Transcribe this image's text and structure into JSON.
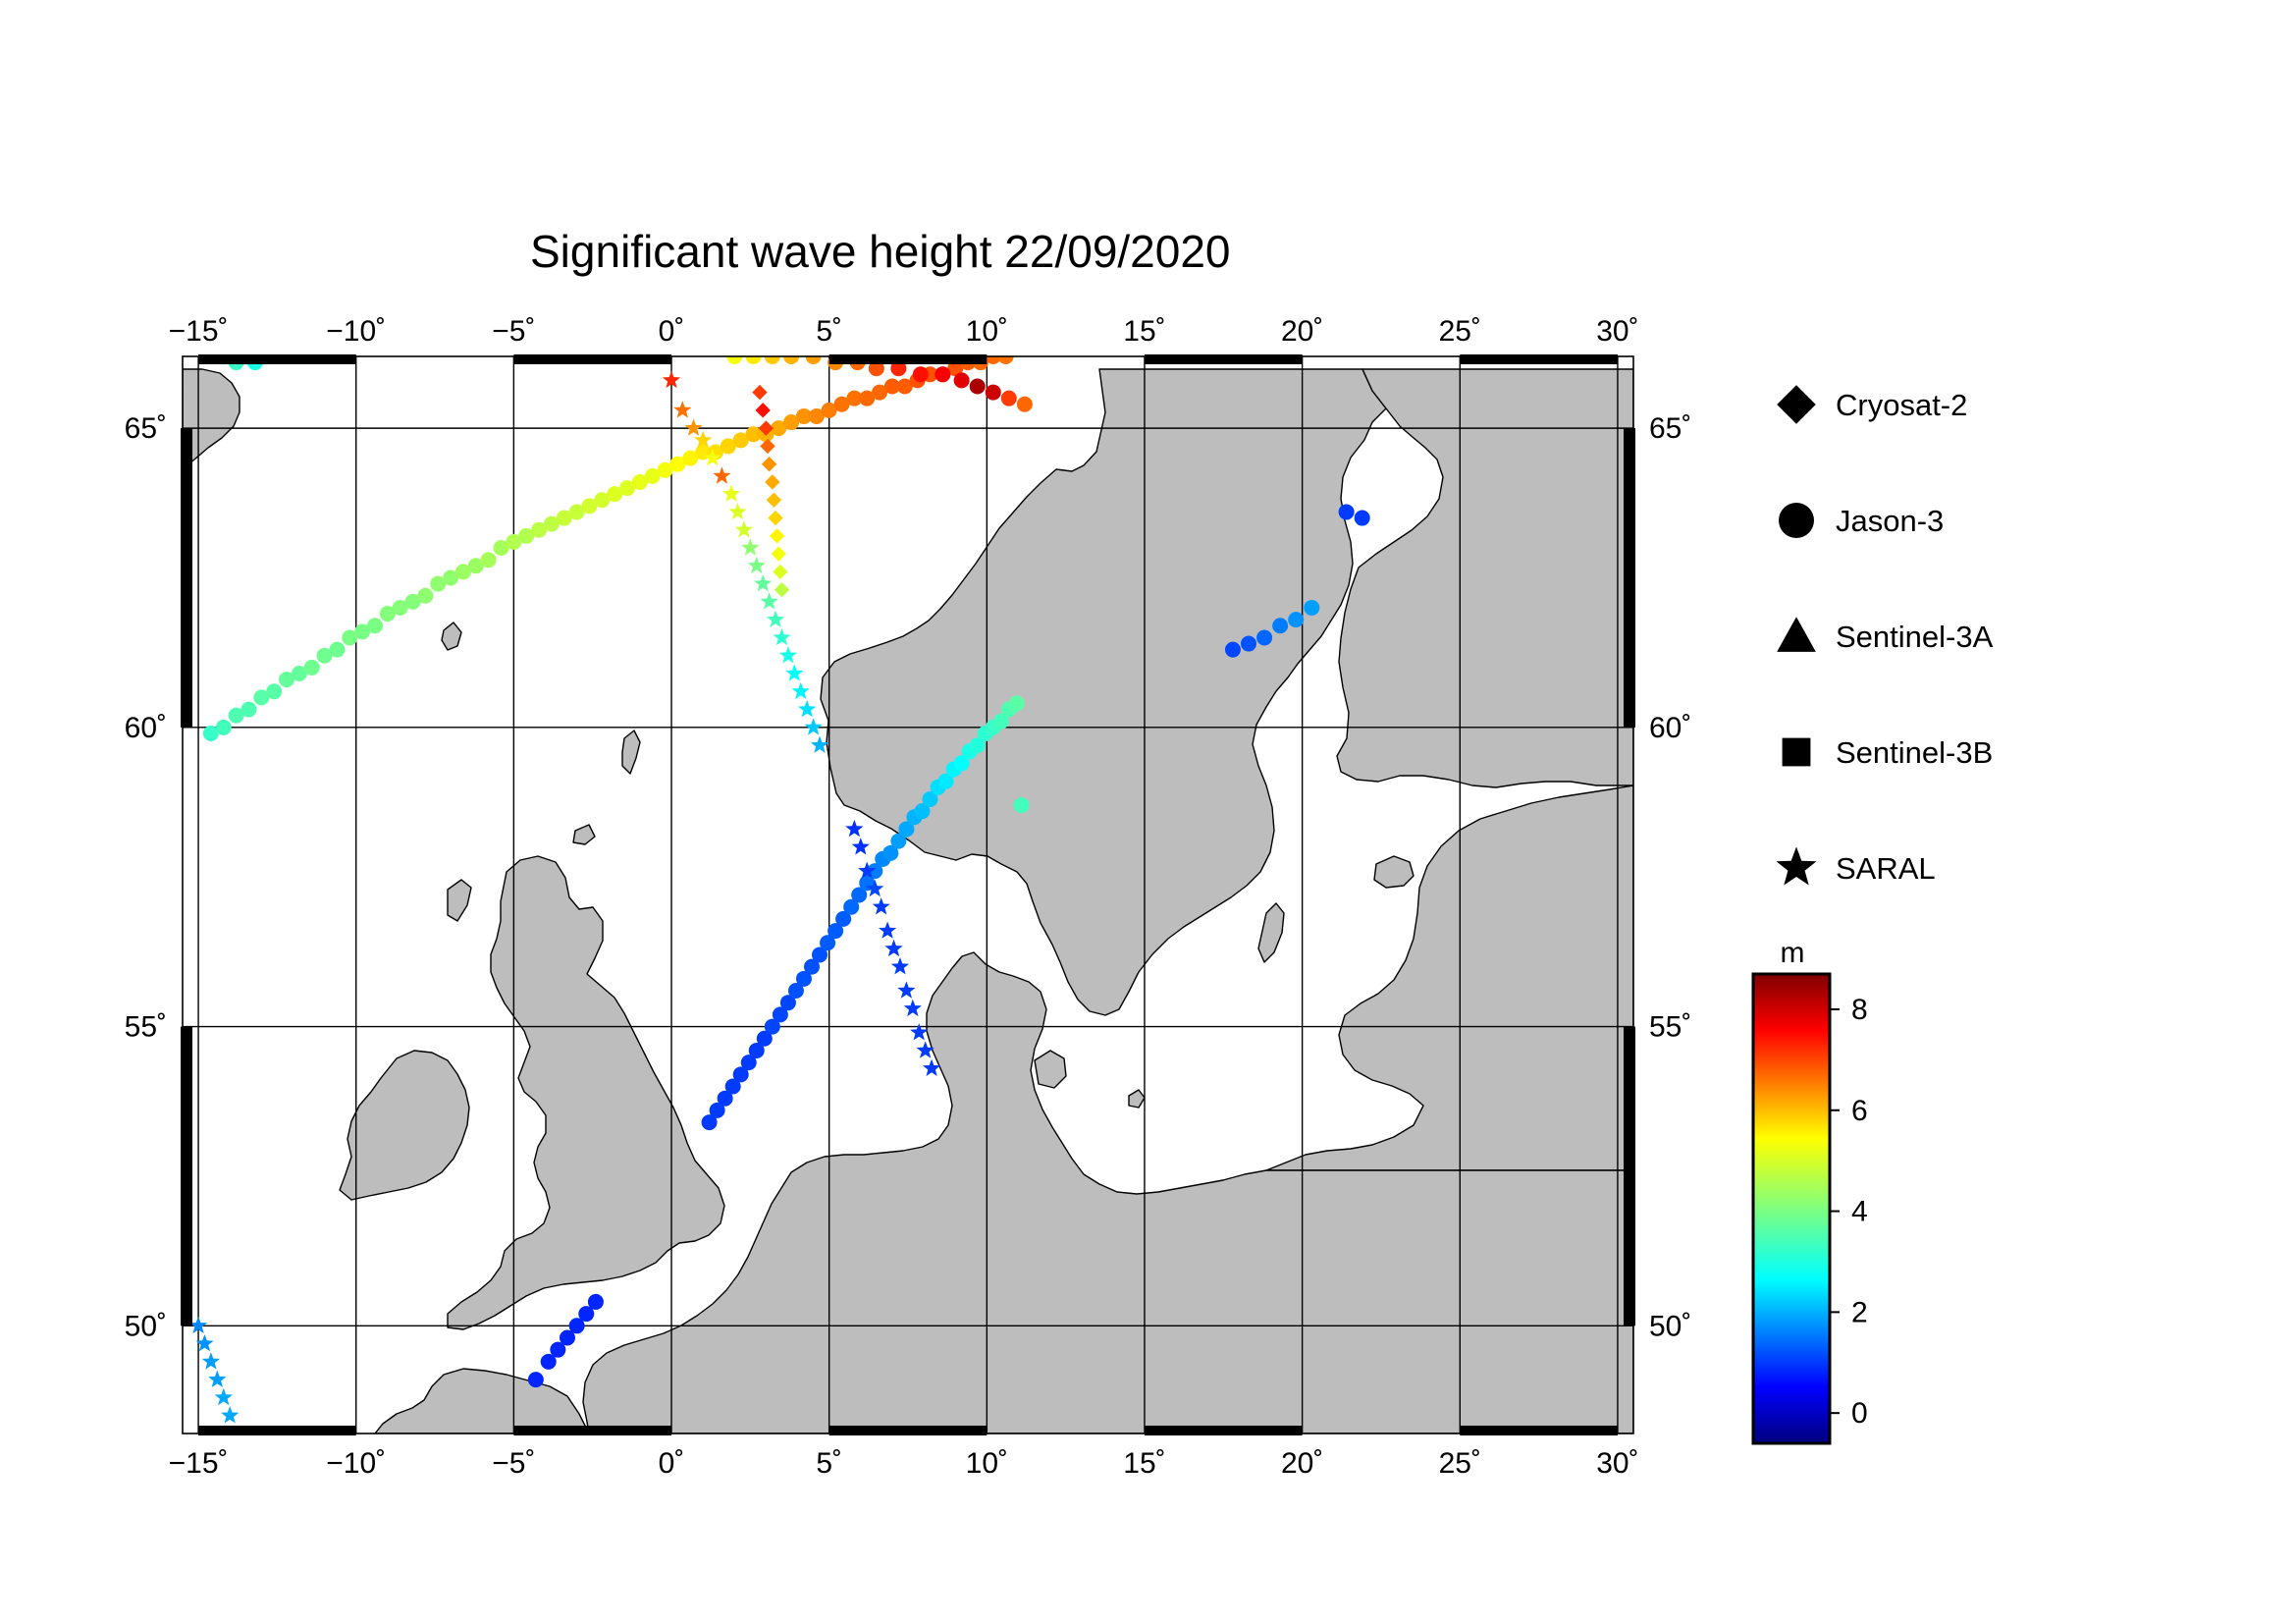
{
  "title": "Significant wave height 22/09/2020",
  "map": {
    "lon_range": [
      -15.5,
      30.5
    ],
    "lat_range": [
      48.2,
      66.2
    ],
    "lon_ticks": [
      -15,
      -10,
      -5,
      0,
      5,
      10,
      15,
      20,
      25,
      30
    ],
    "lon_tick_labels": [
      "−15˚",
      "−10˚",
      "−5˚",
      "0˚",
      "5˚",
      "10˚",
      "15˚",
      "20˚",
      "25˚",
      "30˚"
    ],
    "lat_ticks": [
      50,
      55,
      60,
      65
    ],
    "lat_tick_labels": [
      "50˚",
      "55˚",
      "60˚",
      "65˚"
    ],
    "land_color": "#bdbdbd",
    "sea_color": "#ffffff"
  },
  "legend": [
    {
      "name": "Cryosat-2",
      "marker": "diamond"
    },
    {
      "name": "Jason-3",
      "marker": "circle"
    },
    {
      "name": "Sentinel-3A",
      "marker": "triangle"
    },
    {
      "name": "Sentinel-3B",
      "marker": "square"
    },
    {
      "name": "SARAL",
      "marker": "star"
    }
  ],
  "colorbar": {
    "unit": "m",
    "min": -0.6,
    "max": 8.7,
    "ticks": [
      0,
      2,
      4,
      6,
      8
    ],
    "tick_labels": [
      "0",
      "2",
      "4",
      "6",
      "8"
    ],
    "colormap": "jet"
  },
  "chart_data": {
    "type": "scatter",
    "x_label": "",
    "y_label": "",
    "tracks": [
      {
        "name": "Jason-3",
        "marker": "circle",
        "points": [
          [
            -14.6,
            59.9,
            3.4
          ],
          [
            -14.2,
            60.0,
            3.5
          ],
          [
            -13.8,
            60.2,
            3.6
          ],
          [
            -13.4,
            60.3,
            3.6
          ],
          [
            -13.0,
            60.5,
            3.7
          ],
          [
            -12.6,
            60.6,
            3.7
          ],
          [
            -12.2,
            60.8,
            3.8
          ],
          [
            -11.8,
            60.9,
            3.8
          ],
          [
            -11.4,
            61.0,
            3.9
          ],
          [
            -11.0,
            61.2,
            3.9
          ],
          [
            -10.6,
            61.3,
            3.9
          ],
          [
            -10.2,
            61.5,
            4.0
          ],
          [
            -9.8,
            61.6,
            4.0
          ],
          [
            -9.4,
            61.7,
            4.0
          ],
          [
            -9.0,
            61.9,
            4.1
          ],
          [
            -8.6,
            62.0,
            4.1
          ],
          [
            -8.2,
            62.1,
            4.1
          ],
          [
            -7.8,
            62.2,
            4.2
          ],
          [
            -7.4,
            62.4,
            4.2
          ],
          [
            -7.0,
            62.5,
            4.2
          ],
          [
            -6.6,
            62.6,
            4.3
          ],
          [
            -6.2,
            62.7,
            4.3
          ],
          [
            -5.8,
            62.8,
            4.4
          ],
          [
            -5.4,
            63.0,
            4.4
          ],
          [
            -5.0,
            63.1,
            4.5
          ],
          [
            -4.6,
            63.2,
            4.5
          ],
          [
            -4.2,
            63.3,
            4.6
          ],
          [
            -3.8,
            63.4,
            4.6
          ],
          [
            -3.4,
            63.5,
            4.7
          ],
          [
            -3.0,
            63.6,
            4.7
          ],
          [
            -2.6,
            63.7,
            4.8
          ],
          [
            -2.2,
            63.8,
            4.8
          ],
          [
            -1.8,
            63.9,
            4.9
          ],
          [
            -1.4,
            64.0,
            4.9
          ],
          [
            -1.0,
            64.1,
            5.0
          ],
          [
            -0.6,
            64.2,
            5.0
          ],
          [
            -0.2,
            64.3,
            5.1
          ],
          [
            0.2,
            64.4,
            5.2
          ],
          [
            0.6,
            64.5,
            5.3
          ],
          [
            1.0,
            64.6,
            5.4
          ],
          [
            1.4,
            64.6,
            5.5
          ],
          [
            1.8,
            64.7,
            5.6
          ],
          [
            2.2,
            64.8,
            5.7
          ],
          [
            2.6,
            64.9,
            5.8
          ],
          [
            3.0,
            64.9,
            5.9
          ],
          [
            3.4,
            65.0,
            6.0
          ],
          [
            3.8,
            65.1,
            6.1
          ],
          [
            4.2,
            65.2,
            6.2
          ],
          [
            4.6,
            65.2,
            6.3
          ],
          [
            5.0,
            65.3,
            6.4
          ],
          [
            5.4,
            65.4,
            6.5
          ],
          [
            5.8,
            65.5,
            6.5
          ],
          [
            6.2,
            65.5,
            6.6
          ],
          [
            6.6,
            65.6,
            6.6
          ],
          [
            7.0,
            65.7,
            6.7
          ],
          [
            7.4,
            65.7,
            6.7
          ],
          [
            7.8,
            65.8,
            6.8
          ],
          [
            8.2,
            65.9,
            6.8
          ],
          [
            8.6,
            65.9,
            6.8
          ],
          [
            9.0,
            66.0,
            6.8
          ],
          [
            9.4,
            66.1,
            6.7
          ],
          [
            9.8,
            66.1,
            6.6
          ],
          [
            10.2,
            66.2,
            6.6
          ],
          [
            10.6,
            66.2,
            6.5
          ],
          [
            11.2,
            65.4,
            6.6
          ],
          [
            10.7,
            65.5,
            7.0
          ],
          [
            10.2,
            65.6,
            8.0
          ],
          [
            9.7,
            65.7,
            8.3
          ],
          [
            9.2,
            65.8,
            7.8
          ],
          [
            8.6,
            65.9,
            7.6
          ],
          [
            7.9,
            65.9,
            7.4
          ],
          [
            7.2,
            66.0,
            7.2
          ],
          [
            6.5,
            66.0,
            6.8
          ],
          [
            5.9,
            66.1,
            6.6
          ],
          [
            5.2,
            66.1,
            6.3
          ],
          [
            4.5,
            66.2,
            6.1
          ],
          [
            3.8,
            66.2,
            5.9
          ],
          [
            3.2,
            66.2,
            5.7
          ],
          [
            2.6,
            66.2,
            5.4
          ],
          [
            2.0,
            66.2,
            5.1
          ],
          [
            -13.8,
            66.1,
            3.4
          ],
          [
            -13.2,
            66.1,
            3.1
          ],
          [
            -12.5,
            66.2,
            2.6
          ],
          [
            -11.8,
            66.2,
            3.2
          ],
          [
            -11.2,
            66.2,
            3.6
          ],
          [
            1.2,
            53.4,
            1.1
          ],
          [
            1.45,
            53.6,
            1.1
          ],
          [
            1.7,
            53.8,
            1.1
          ],
          [
            1.95,
            54.0,
            1.1
          ],
          [
            2.2,
            54.2,
            1.1
          ],
          [
            2.45,
            54.4,
            1.1
          ],
          [
            2.7,
            54.6,
            1.1
          ],
          [
            2.95,
            54.8,
            1.1
          ],
          [
            3.2,
            55.0,
            1.2
          ],
          [
            3.45,
            55.2,
            1.2
          ],
          [
            3.7,
            55.4,
            1.2
          ],
          [
            3.95,
            55.6,
            1.3
          ],
          [
            4.2,
            55.8,
            1.3
          ],
          [
            4.45,
            56.0,
            1.3
          ],
          [
            4.7,
            56.2,
            1.3
          ],
          [
            4.95,
            56.4,
            1.4
          ],
          [
            5.2,
            56.6,
            1.4
          ],
          [
            5.45,
            56.8,
            1.4
          ],
          [
            5.7,
            57.0,
            1.5
          ],
          [
            5.95,
            57.2,
            1.5
          ],
          [
            6.2,
            57.4,
            1.6
          ],
          [
            6.45,
            57.6,
            1.7
          ],
          [
            6.7,
            57.8,
            1.8
          ],
          [
            6.95,
            57.9,
            1.9
          ],
          [
            7.2,
            58.1,
            2.0
          ],
          [
            7.45,
            58.3,
            2.1
          ],
          [
            7.7,
            58.5,
            2.2
          ],
          [
            7.95,
            58.6,
            2.3
          ],
          [
            8.2,
            58.8,
            2.4
          ],
          [
            8.45,
            59.0,
            2.6
          ],
          [
            8.7,
            59.1,
            2.7
          ],
          [
            8.95,
            59.3,
            2.8
          ],
          [
            9.2,
            59.4,
            2.9
          ],
          [
            9.45,
            59.6,
            3.1
          ],
          [
            9.7,
            59.7,
            3.2
          ],
          [
            9.95,
            59.9,
            3.3
          ],
          [
            10.2,
            60.0,
            3.4
          ],
          [
            10.45,
            60.1,
            3.5
          ],
          [
            10.7,
            60.3,
            3.6
          ],
          [
            10.95,
            60.4,
            3.7
          ],
          [
            11.1,
            58.7,
            3.5
          ],
          [
            17.8,
            61.3,
            1.2
          ],
          [
            18.3,
            61.4,
            1.3
          ],
          [
            18.8,
            61.5,
            1.5
          ],
          [
            19.3,
            61.7,
            1.7
          ],
          [
            19.8,
            61.8,
            1.9
          ],
          [
            20.3,
            62.0,
            2.0
          ],
          [
            21.4,
            63.6,
            1.1
          ],
          [
            21.9,
            63.5,
            1.1
          ],
          [
            -4.3,
            49.1,
            0.9
          ],
          [
            -3.9,
            49.4,
            0.9
          ],
          [
            -3.6,
            49.6,
            0.9
          ],
          [
            -3.3,
            49.8,
            0.9
          ],
          [
            -3.0,
            50.0,
            0.9
          ],
          [
            -2.7,
            50.2,
            0.9
          ],
          [
            -2.4,
            50.4,
            0.9
          ]
        ]
      },
      {
        "name": "SARAL",
        "marker": "star",
        "points": [
          [
            0.0,
            65.8,
            7.2
          ],
          [
            0.35,
            65.3,
            6.5
          ],
          [
            0.7,
            65.0,
            6.2
          ],
          [
            1.0,
            64.8,
            5.6
          ],
          [
            1.3,
            64.5,
            5.1
          ],
          [
            1.6,
            64.2,
            6.6
          ],
          [
            1.9,
            63.9,
            5.0
          ],
          [
            2.1,
            63.6,
            4.9
          ],
          [
            2.3,
            63.3,
            4.8
          ],
          [
            2.5,
            63.0,
            4.2
          ],
          [
            2.7,
            62.7,
            4.0
          ],
          [
            2.9,
            62.4,
            3.8
          ],
          [
            3.1,
            62.1,
            3.7
          ],
          [
            3.3,
            61.8,
            3.5
          ],
          [
            3.5,
            61.5,
            3.3
          ],
          [
            3.7,
            61.2,
            3.1
          ],
          [
            3.9,
            60.9,
            2.9
          ],
          [
            4.1,
            60.6,
            2.8
          ],
          [
            4.3,
            60.3,
            2.6
          ],
          [
            4.5,
            60.0,
            2.4
          ],
          [
            4.7,
            59.7,
            2.2
          ],
          [
            5.8,
            58.3,
            1.0
          ],
          [
            6.0,
            58.0,
            1.0
          ],
          [
            6.2,
            57.6,
            1.1
          ],
          [
            6.45,
            57.3,
            1.2
          ],
          [
            6.65,
            57.0,
            1.1
          ],
          [
            6.85,
            56.6,
            1.1
          ],
          [
            7.05,
            56.3,
            1.1
          ],
          [
            7.25,
            56.0,
            1.1
          ],
          [
            7.45,
            55.6,
            1.1
          ],
          [
            7.65,
            55.3,
            1.1
          ],
          [
            7.85,
            54.9,
            1.1
          ],
          [
            8.05,
            54.6,
            1.1
          ],
          [
            8.25,
            54.3,
            1.1
          ],
          [
            -15.0,
            50.0,
            1.8
          ],
          [
            -14.8,
            49.7,
            1.9
          ],
          [
            -14.6,
            49.4,
            2.0
          ],
          [
            -14.4,
            49.1,
            2.0
          ],
          [
            -14.2,
            48.8,
            2.1
          ],
          [
            -14.0,
            48.5,
            2.1
          ]
        ]
      },
      {
        "name": "Cryosat-2",
        "marker": "diamond",
        "points": [
          [
            2.8,
            65.6,
            7.0
          ],
          [
            2.9,
            65.3,
            7.4
          ],
          [
            3.0,
            65.0,
            7.0
          ],
          [
            3.05,
            64.7,
            6.6
          ],
          [
            3.1,
            64.4,
            6.2
          ],
          [
            3.2,
            64.1,
            6.0
          ],
          [
            3.25,
            63.8,
            5.8
          ],
          [
            3.3,
            63.5,
            5.6
          ],
          [
            3.35,
            63.2,
            5.3
          ],
          [
            3.4,
            62.9,
            5.1
          ],
          [
            3.45,
            62.6,
            4.9
          ],
          [
            3.5,
            62.3,
            4.6
          ]
        ]
      }
    ]
  }
}
